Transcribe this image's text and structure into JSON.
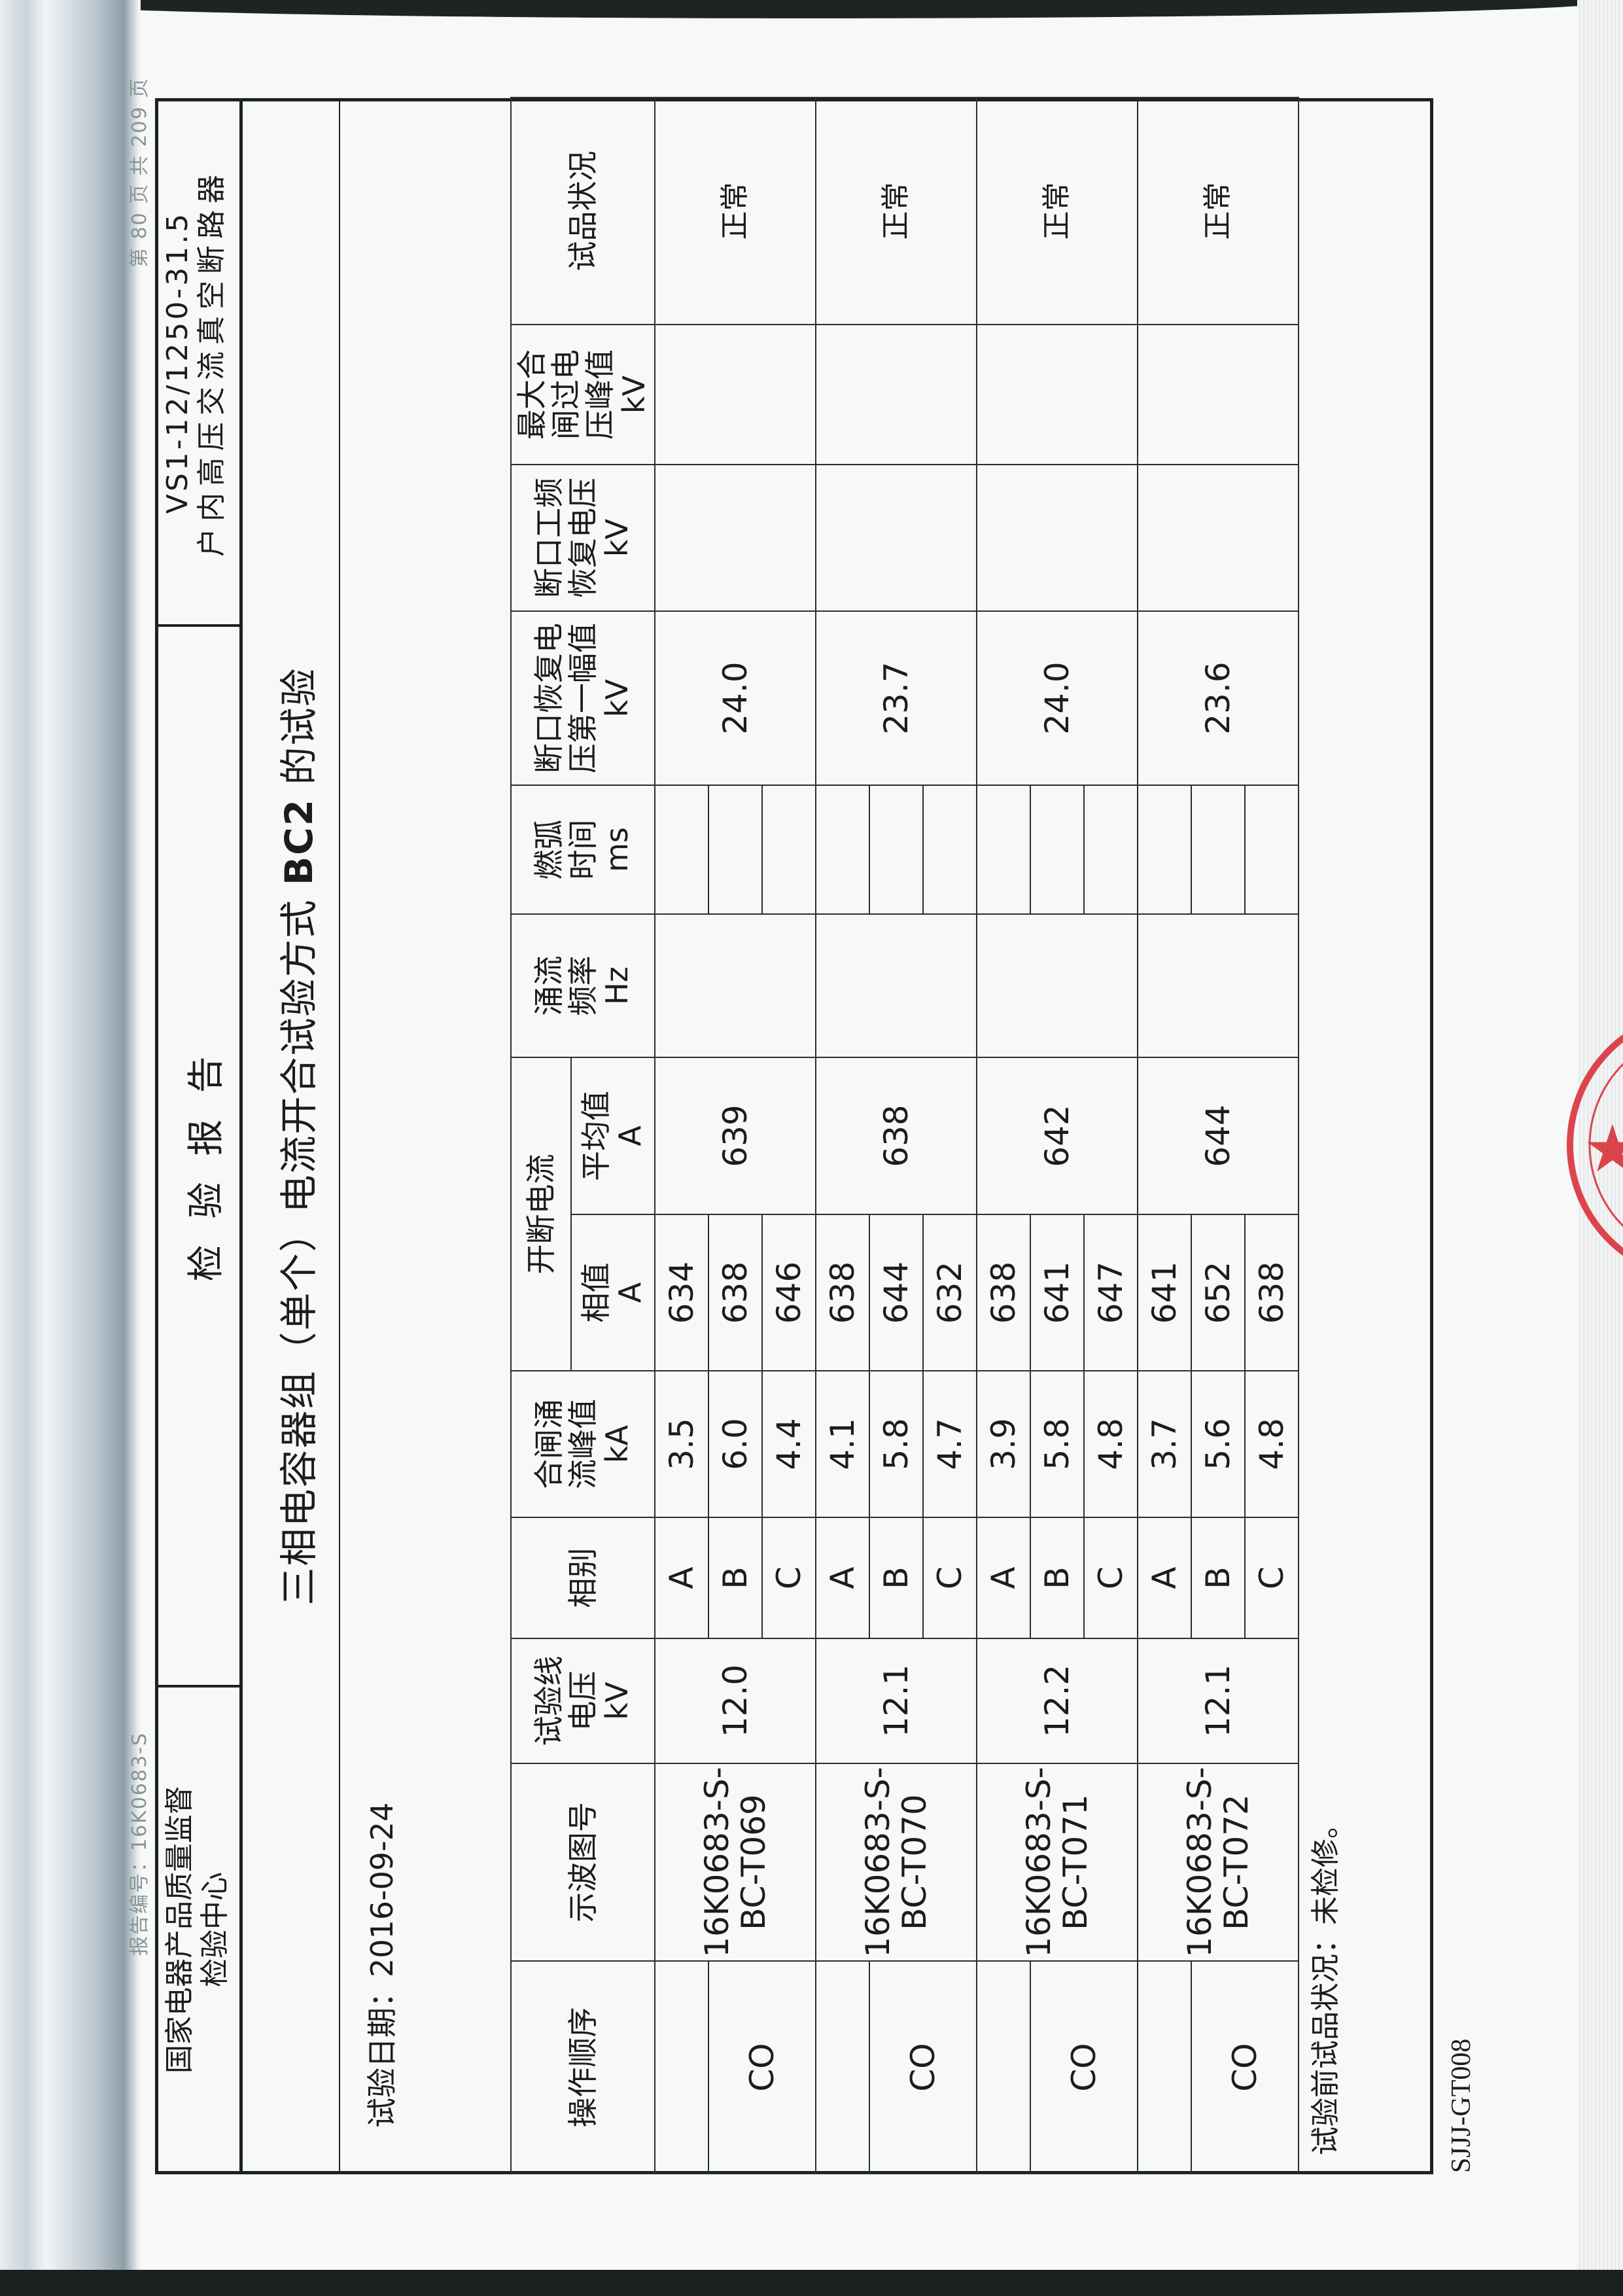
{
  "margin": {
    "report_number": "报告编号：16K0683-S",
    "page_info": "第 80 页  共 209 页"
  },
  "header": {
    "institute": "国家电器产品质量监督\n检验中心",
    "document_title": "检验报告",
    "product_model": "VS1-12/1250-31.5",
    "product_name": "户内高压交流真空断路器"
  },
  "test": {
    "title_prefix": "三相电容器组（单个）电流开合试验方式 ",
    "title_mode": "BC2",
    "title_suffix": " 的试验",
    "date_label": "试验日期：",
    "date_value": "2016-09-24"
  },
  "table": {
    "columns": {
      "operation": "操作顺序",
      "oscillogram": "示波图号",
      "line_voltage": "试验线\n电压\nkV",
      "phase": "相别",
      "inrush_peak": "合闸涌\n流峰值\nkA",
      "breaking_current": "开断电流",
      "phase_value": "相值\nA",
      "average": "平均值\nA",
      "inrush_freq": "涌流\n频率\nHz",
      "arcing_time": "燃弧\n时间\nms",
      "trv_first_peak": "断口恢复电\n压第一幅值\nkV",
      "pf_recovery": "断口工频\n恢复电压\nkV",
      "max_overvoltage": "最大合\n闸过电\n压峰值\nkV",
      "sample_status": "试品状况"
    },
    "groups": [
      {
        "operation": "CO",
        "oscillogram": "16K0683-S-\nBC-T069",
        "line_voltage": "12.0",
        "phases": [
          {
            "phase": "A",
            "inrush_peak": "3.5",
            "phase_value": "634",
            "arcing_time": ""
          },
          {
            "phase": "B",
            "inrush_peak": "6.0",
            "phase_value": "638",
            "arcing_time": ""
          },
          {
            "phase": "C",
            "inrush_peak": "4.4",
            "phase_value": "646",
            "arcing_time": ""
          }
        ],
        "average": "639",
        "inrush_freq": "",
        "trv_first_peak": "24.0",
        "pf_recovery": "",
        "max_overvoltage": "",
        "sample_status": "正常"
      },
      {
        "operation": "CO",
        "oscillogram": "16K0683-S-\nBC-T070",
        "line_voltage": "12.1",
        "phases": [
          {
            "phase": "A",
            "inrush_peak": "4.1",
            "phase_value": "638",
            "arcing_time": ""
          },
          {
            "phase": "B",
            "inrush_peak": "5.8",
            "phase_value": "644",
            "arcing_time": ""
          },
          {
            "phase": "C",
            "inrush_peak": "4.7",
            "phase_value": "632",
            "arcing_time": ""
          }
        ],
        "average": "638",
        "inrush_freq": "",
        "trv_first_peak": "23.7",
        "pf_recovery": "",
        "max_overvoltage": "",
        "sample_status": "正常"
      },
      {
        "operation": "CO",
        "oscillogram": "16K0683-S-\nBC-T071",
        "line_voltage": "12.2",
        "phases": [
          {
            "phase": "A",
            "inrush_peak": "3.9",
            "phase_value": "638",
            "arcing_time": ""
          },
          {
            "phase": "B",
            "inrush_peak": "5.8",
            "phase_value": "641",
            "arcing_time": ""
          },
          {
            "phase": "C",
            "inrush_peak": "4.8",
            "phase_value": "647",
            "arcing_time": ""
          }
        ],
        "average": "642",
        "inrush_freq": "",
        "trv_first_peak": "24.0",
        "pf_recovery": "",
        "max_overvoltage": "",
        "sample_status": "正常"
      },
      {
        "operation": "CO",
        "oscillogram": "16K0683-S-\nBC-T072",
        "line_voltage": "12.1",
        "phases": [
          {
            "phase": "A",
            "inrush_peak": "3.7",
            "phase_value": "641",
            "arcing_time": ""
          },
          {
            "phase": "B",
            "inrush_peak": "5.6",
            "phase_value": "652",
            "arcing_time": ""
          },
          {
            "phase": "C",
            "inrush_peak": "4.8",
            "phase_value": "638",
            "arcing_time": ""
          }
        ],
        "average": "644",
        "inrush_freq": "",
        "trv_first_peak": "23.6",
        "pf_recovery": "",
        "max_overvoltage": "",
        "sample_status": "正常"
      }
    ]
  },
  "footer": {
    "pre_test_status": "试验前试品状况：未检修。",
    "form_code": "SJJJ-GT008"
  },
  "colors": {
    "ink": "#1a1d1c",
    "stamp": "#d8262f"
  },
  "icons": {
    "seal": "red-official-seal-star"
  }
}
